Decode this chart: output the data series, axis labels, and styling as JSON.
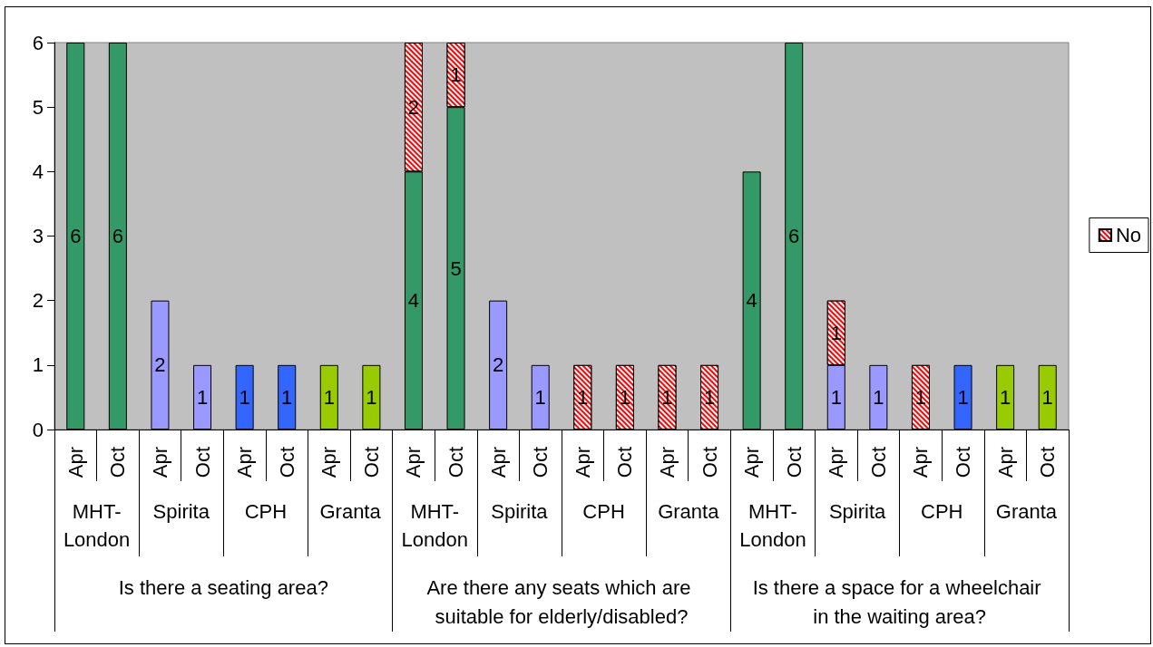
{
  "chart_data": {
    "type": "bar",
    "stacked": true,
    "data_labels": true,
    "legend": "right",
    "grid": false,
    "categories": [
      "Apr",
      "Oct",
      "Apr",
      "Oct",
      "Apr",
      "Oct",
      "Apr",
      "Oct",
      "Apr",
      "Oct",
      "Apr",
      "Oct",
      "Apr",
      "Oct",
      "Apr",
      "Oct",
      "Apr",
      "Oct",
      "Apr",
      "Oct",
      "Apr",
      "Oct",
      "Apr",
      "Oct"
    ],
    "annotations": [
      "MHT-London",
      "Spirita",
      "CPH",
      "Granta",
      "MHT-London",
      "Spirita",
      "CPH",
      "Granta",
      "MHT-London",
      "Spirita",
      "CPH",
      "Granta",
      "Is there a seating area?",
      "Are there any seats which are suitable for elderly/disabled?",
      "Is there a space for a wheelchair in the waiting area?"
    ],
    "series": [
      {
        "colors": [
          "#339966",
          "#339966",
          "#9999ff",
          "#9999ff",
          "#3366ff",
          "#3366ff",
          "#99cc00",
          "#99cc00",
          "#339966",
          "#339966",
          "#9999ff",
          "#9999ff",
          null,
          null,
          null,
          null,
          "#339966",
          "#339966",
          "#9999ff",
          "#9999ff",
          null,
          "#3366ff",
          "#99cc00",
          "#99cc00"
        ],
        "values": [
          6,
          6,
          2,
          1,
          1,
          1,
          1,
          1,
          4,
          5,
          2,
          1,
          null,
          null,
          null,
          null,
          4,
          6,
          1,
          1,
          null,
          1,
          1,
          1
        ]
      },
      {
        "name": "No",
        "color": "#ff0000",
        "values": [
          null,
          null,
          null,
          null,
          null,
          null,
          null,
          null,
          2,
          1,
          null,
          null,
          1,
          1,
          1,
          1,
          null,
          null,
          1,
          null,
          1,
          null,
          null,
          null
        ]
      }
    ],
    "ylim": [
      0,
      6
    ],
    "yticks": [
      0,
      1,
      2,
      3,
      4,
      5,
      6
    ]
  }
}
